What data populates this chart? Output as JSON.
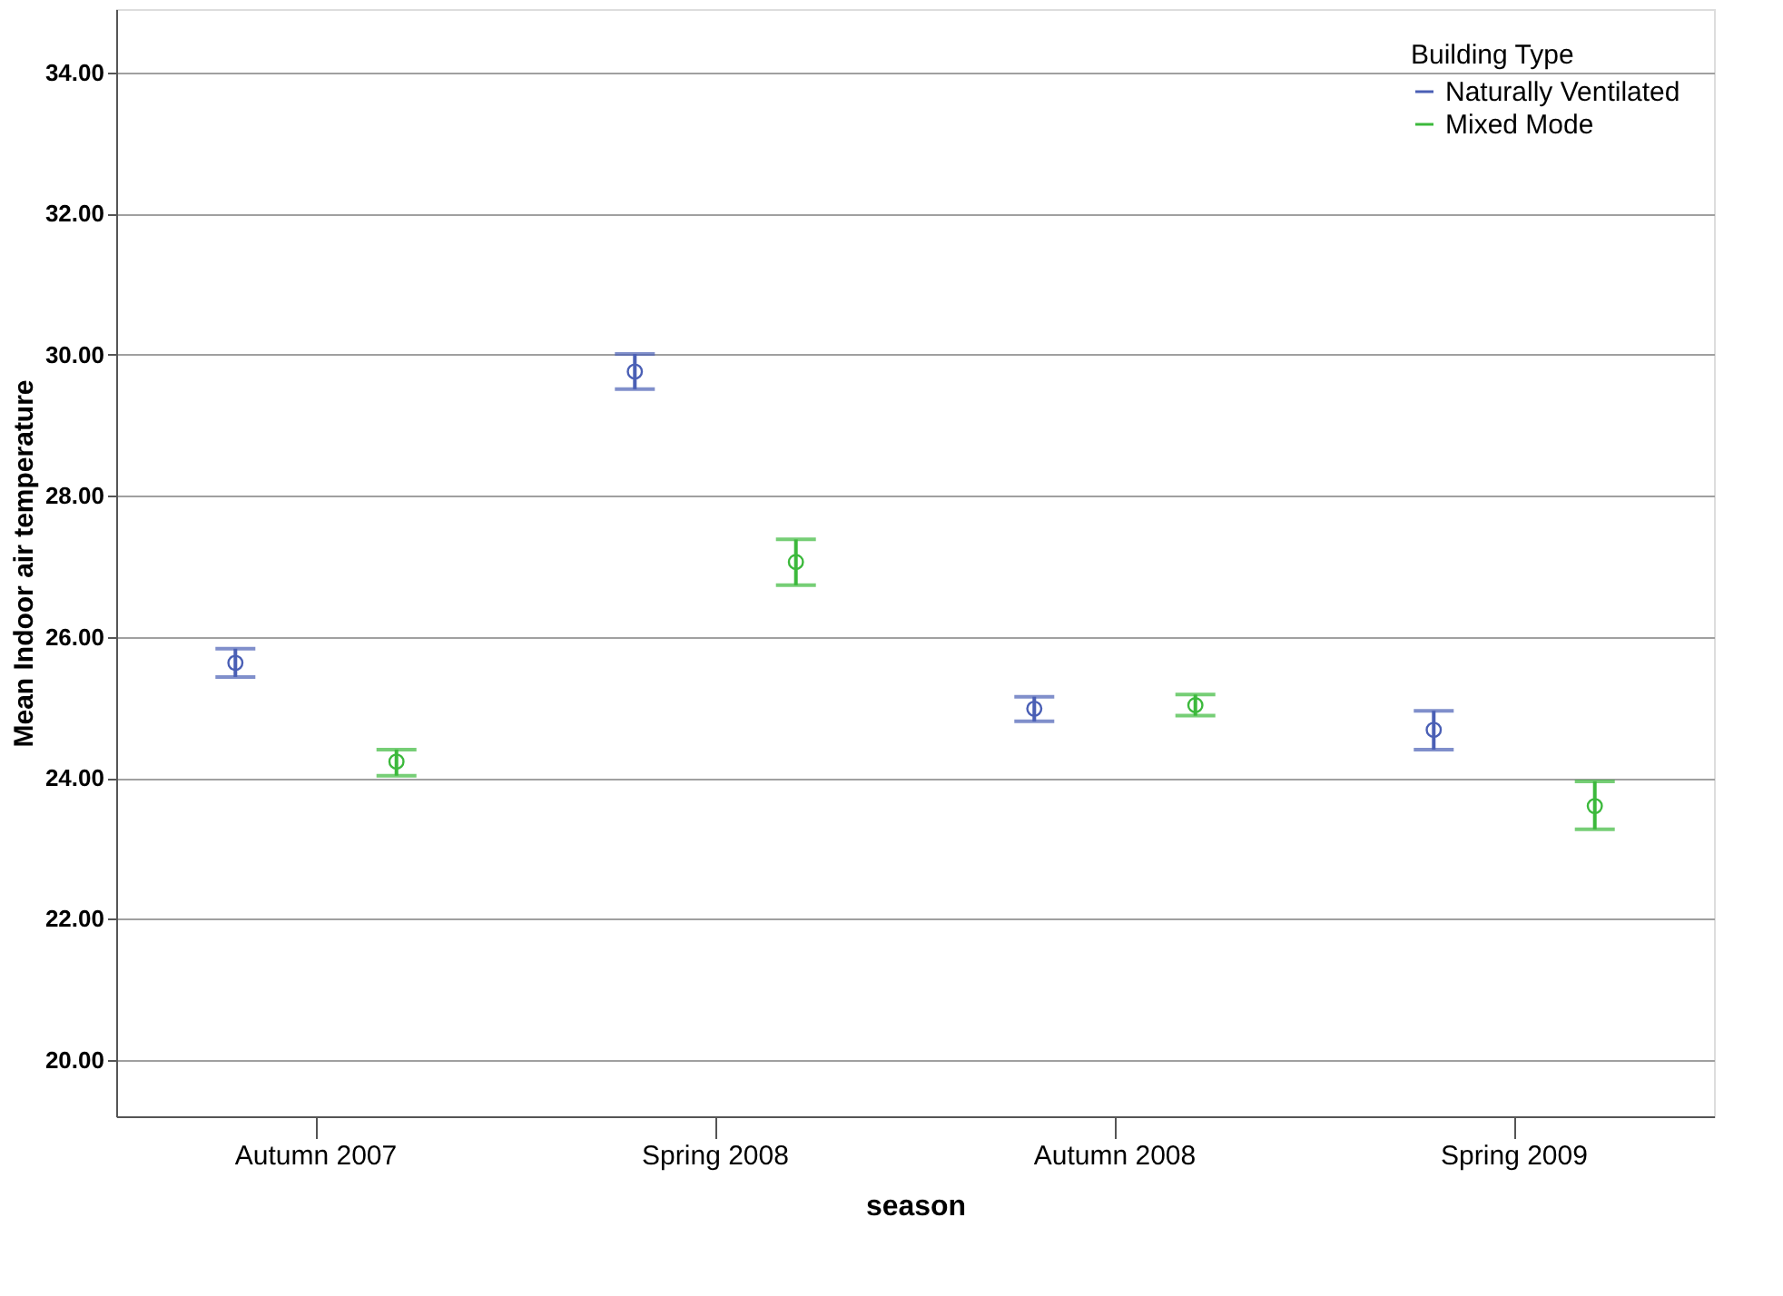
{
  "chart_data": {
    "type": "scatter",
    "xlabel": "season",
    "ylabel": "Mean Indoor air temperature",
    "legend_title": "Building Type",
    "categories": [
      "Autumn 2007",
      "Spring 2008",
      "Autumn 2008",
      "Spring 2009"
    ],
    "series": [
      {
        "name": "Naturally Ventilated",
        "color": "#4a5fb5",
        "values": [
          25.63,
          29.76,
          24.98,
          24.68
        ],
        "errors": [
          [
            25.43,
            25.83
          ],
          [
            29.51,
            30.01
          ],
          [
            24.8,
            25.15
          ],
          [
            24.4,
            24.95
          ]
        ]
      },
      {
        "name": "Mixed Mode",
        "color": "#3cb93c",
        "values": [
          24.23,
          27.06,
          25.03,
          23.6
        ],
        "errors": [
          [
            24.03,
            24.4
          ],
          [
            26.73,
            27.38
          ],
          [
            24.88,
            25.18
          ],
          [
            23.27,
            23.95
          ]
        ]
      }
    ],
    "ylim": [
      19.2,
      34.9
    ],
    "yticks": [
      {
        "value": 20,
        "label": "20.00"
      },
      {
        "value": 22,
        "label": "22.00"
      },
      {
        "value": 24,
        "label": "24.00"
      },
      {
        "value": 26,
        "label": "26.00"
      },
      {
        "value": 28,
        "label": "28.00"
      },
      {
        "value": 30,
        "label": "30.00"
      },
      {
        "value": 32,
        "label": "32.00"
      },
      {
        "value": 34,
        "label": "34.00"
      }
    ],
    "grid": "y",
    "legend": "top right",
    "marker": "circle"
  }
}
